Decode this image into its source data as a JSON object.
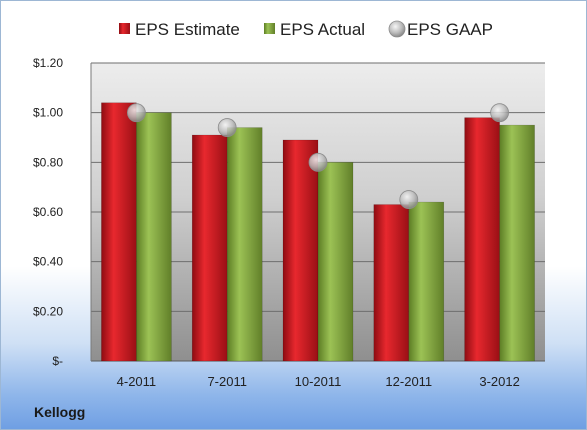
{
  "company": "Kellogg",
  "chart_data": {
    "type": "bar",
    "categories": [
      "4-2011",
      "7-2011",
      "10-2011",
      "12-2011",
      "3-2012"
    ],
    "series": [
      {
        "name": "EPS Estimate",
        "type": "bar",
        "color": "#c0141c",
        "values": [
          1.04,
          0.91,
          0.89,
          0.63,
          0.98
        ]
      },
      {
        "name": "EPS Actual",
        "type": "bar",
        "color": "#7ea43a",
        "values": [
          1.0,
          0.94,
          0.8,
          0.64,
          0.95
        ]
      },
      {
        "name": "EPS GAAP",
        "type": "scatter",
        "color": "#b9b9b9",
        "values": [
          1.0,
          0.94,
          0.8,
          0.65,
          1.0
        ]
      }
    ],
    "ylim": [
      0,
      1.2
    ],
    "yticks": [
      0,
      0.2,
      0.4,
      0.6,
      0.8,
      1.0,
      1.2
    ],
    "ytick_labels": [
      "$-",
      "$0.20",
      "$0.40",
      "$0.60",
      "$0.80",
      "$1.00",
      "$1.20"
    ],
    "legend_position": "top",
    "grid": true
  }
}
